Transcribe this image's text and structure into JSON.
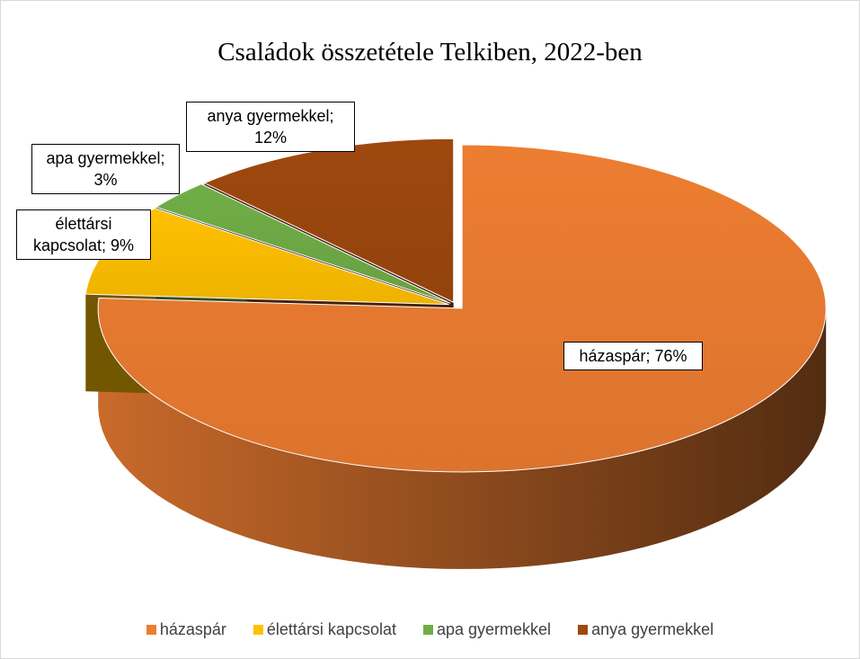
{
  "chart_data": {
    "type": "pie",
    "title": "Családok összetétele Telkiben, 2022-ben",
    "categories": [
      "házaspár",
      "élettársi kapcsolat",
      "apa gyermekkel",
      "anya gyermekkel"
    ],
    "values": [
      76,
      9,
      3,
      12
    ],
    "value_labels": [
      "házaspár; 76%",
      "élettársi kapcsolat; 9%",
      "apa gyermekkel; 3%",
      "anya gyermekkel; 12%"
    ],
    "colors": [
      "#ED7D31",
      "#FFC000",
      "#70AD47",
      "#9E480E"
    ],
    "legend": "bottom"
  }
}
